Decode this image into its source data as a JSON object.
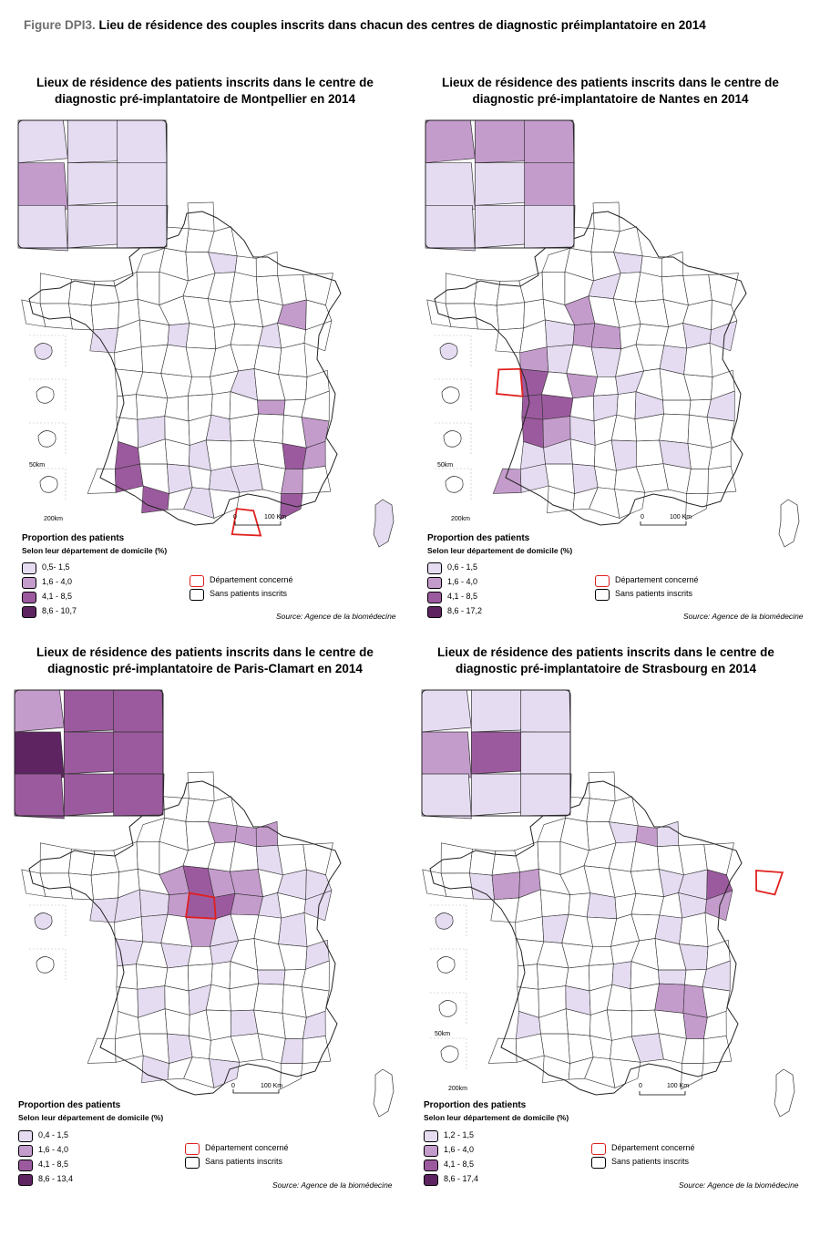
{
  "figure": {
    "label": "Figure DPI3.",
    "title": "Lieu de résidence des couples inscrits dans chacun des centres de diagnostic préimplantatoire en 2014"
  },
  "colors": {
    "class1": "#e6dcf2",
    "class2": "#c49ccc",
    "class3": "#9c5a9e",
    "class4": "#5e2461",
    "none": "#ffffff",
    "concerned_border": "#e0201e"
  },
  "common": {
    "legend_title": "Proportion des patients",
    "legend_subtitle": "Selon leur département de domicile (%)",
    "concerned_label": "Département concerné",
    "none_label": "Sans patients inscrits",
    "source": "Source: Agence de la biomédecine",
    "scale_zero": "0",
    "scale_100": "100 Km",
    "scale_50km": "50km",
    "scale_200km": "200km"
  },
  "panels": [
    {
      "title_line1": "Lieux de résidence des patients inscrits dans le centre de",
      "title_line2": "diagnostic pré-implantatoire de Montpellier en 2014",
      "classes": [
        "0,5- 1,5",
        "1,6 - 4,0",
        "4,1 - 8,5",
        "8,6 - 10,7"
      ]
    },
    {
      "title_line1": "Lieux de résidence des patients inscrits dans le centre de",
      "title_line2": "diagnostic pré-implantatoire de Nantes en 2014",
      "classes": [
        "0,6 - 1,5",
        "1,6 - 4,0",
        "4,1 - 8,5",
        "8,6 - 17,2"
      ]
    },
    {
      "title_line1": "Lieux de résidence des patients inscrits dans le centre de",
      "title_line2": "diagnostic pré-implantatoire de Paris-Clamart en 2014",
      "classes": [
        "0,4 - 1,5",
        "1,6 - 4,0",
        "4,1 - 8,5",
        "8,6 - 13,4"
      ]
    },
    {
      "title_line1": "Lieux de résidence des patients inscrits dans le centre de",
      "title_line2": "diagnostic pré-implantatoire de Strasbourg en 2014",
      "classes": [
        "1,2 - 1,5",
        "1,6 - 4,0",
        "4,1 - 8,5",
        "8,6 - 17,4"
      ]
    }
  ]
}
